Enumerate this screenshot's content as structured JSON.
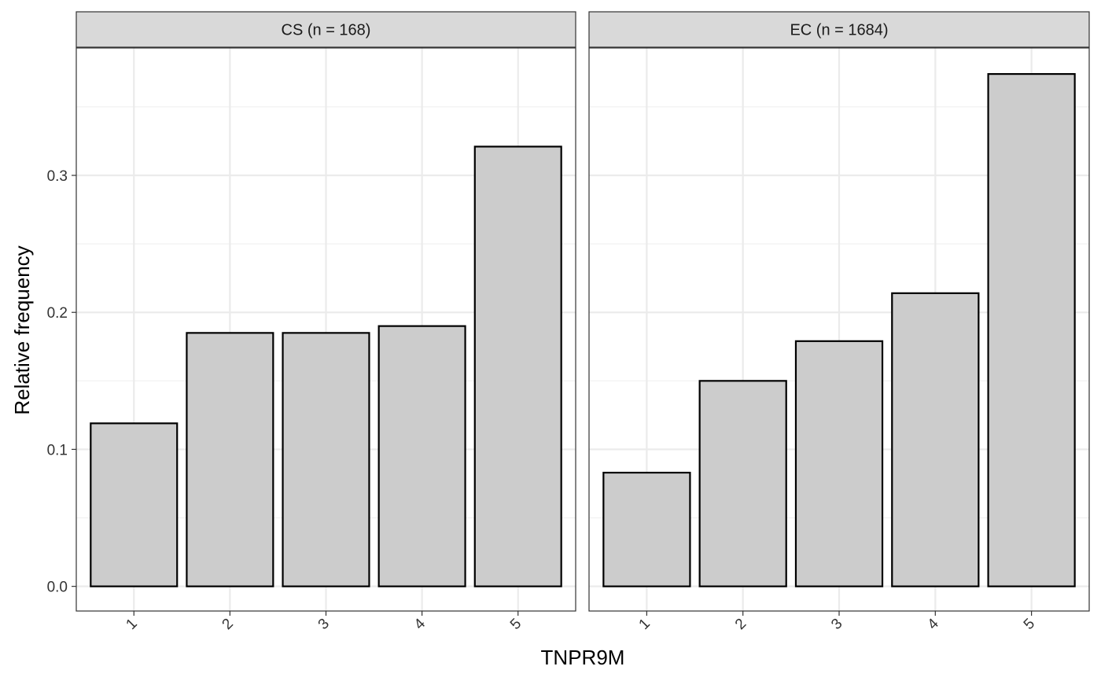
{
  "chart_data": {
    "type": "bar",
    "xlabel": "TNPR9M",
    "ylabel": "Relative frequency",
    "categories": [
      "1",
      "2",
      "3",
      "4",
      "5"
    ],
    "ylim": [
      -0.018,
      0.393
    ],
    "yticks": [
      0.0,
      0.1,
      0.2,
      0.3
    ],
    "ytick_labels": [
      "0.0",
      "0.1",
      "0.2",
      "0.3"
    ],
    "grid": true,
    "bar_fill": "#cccccc",
    "bar_stroke": "#000000",
    "facets": [
      {
        "label": "CS (n = 168)",
        "values": [
          0.119,
          0.185,
          0.185,
          0.19,
          0.321
        ]
      },
      {
        "label": "EC (n = 1684)",
        "values": [
          0.083,
          0.15,
          0.179,
          0.214,
          0.374
        ]
      }
    ]
  }
}
